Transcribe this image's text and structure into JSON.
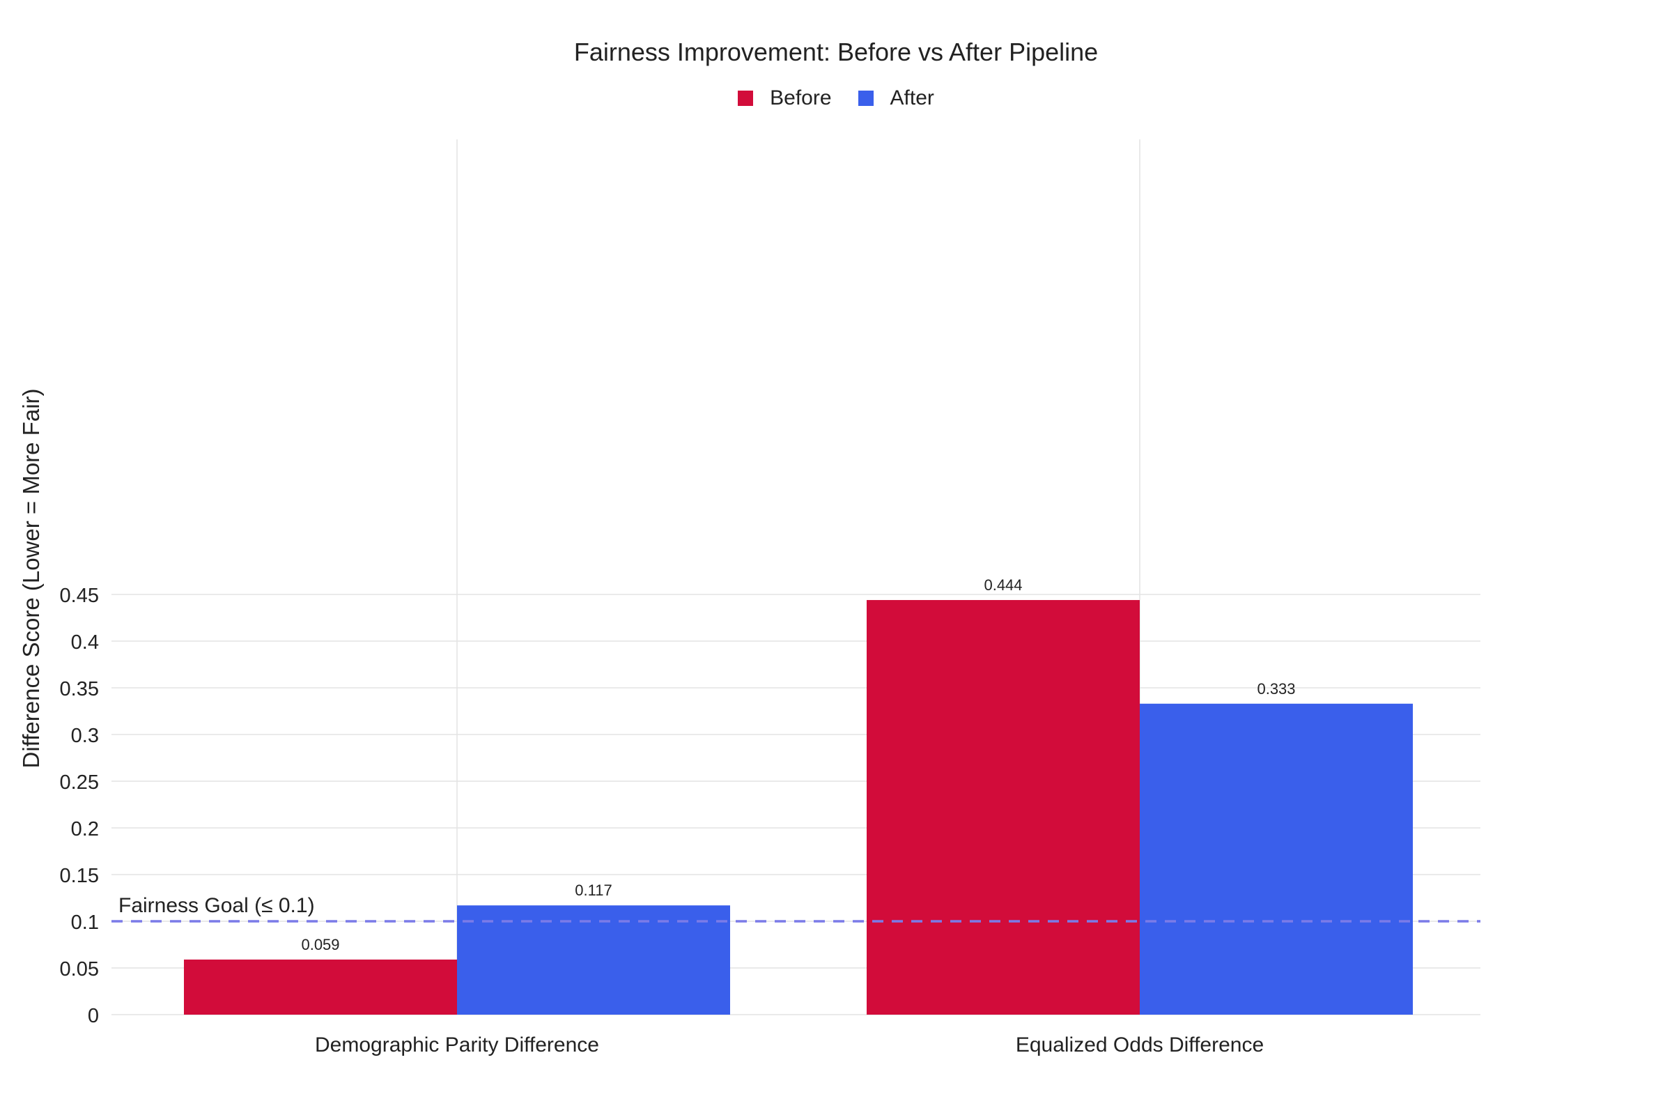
{
  "chart_data": {
    "type": "bar",
    "title": "Fairness Improvement: Before vs After Pipeline",
    "xlabel": "",
    "ylabel": "Difference Score (Lower = More Fair)",
    "categories": [
      "Demographic Parity Difference",
      "Equalized Odds Difference"
    ],
    "series": [
      {
        "name": "Before",
        "color": "#D20C3A",
        "values": [
          0.059,
          0.444
        ]
      },
      {
        "name": "After",
        "color": "#3A5FEB",
        "values": [
          0.117,
          0.333
        ]
      }
    ],
    "data_labels": [
      [
        "0.059",
        "0.444"
      ],
      [
        "0.117",
        "0.333"
      ]
    ],
    "ylim": [
      0,
      0.465
    ],
    "yticks": [
      0,
      0.05,
      0.1,
      0.15,
      0.2,
      0.25,
      0.3,
      0.35,
      0.4,
      0.45
    ],
    "ytick_labels": [
      "0",
      "0.05",
      "0.1",
      "0.15",
      "0.2",
      "0.25",
      "0.3",
      "0.35",
      "0.4",
      "0.45"
    ],
    "grid": true,
    "legend_position": "top-center",
    "reference_line": {
      "value": 0.1,
      "label": "Fairness Goal (≤ 0.1)",
      "color": "#7B7BE8",
      "style": "dashed"
    }
  }
}
